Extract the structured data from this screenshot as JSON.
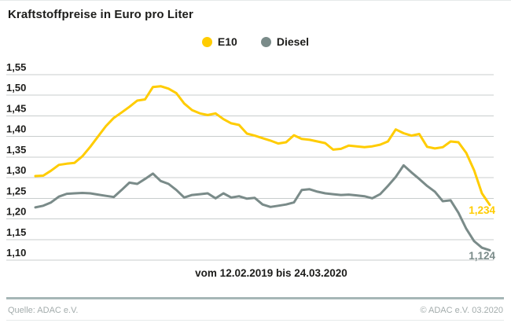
{
  "title": "Kraftstoffpreise in Euro pro Liter",
  "xlabel": "vom 12.02.2019 bis 24.03.2020",
  "footer": {
    "source": "Quelle: ADAC e.V.",
    "copyright": "© ADAC e.V.  03.2020"
  },
  "colors": {
    "e10": "#FFCC00",
    "diesel": "#7A8B89",
    "grid": "#c8cdcd",
    "text": "#1d1d1b",
    "footer_text": "#a3acac",
    "separator": "#a6b7b7"
  },
  "chart_data": {
    "type": "line",
    "title": "Kraftstoffpreise in Euro pro Liter",
    "xlabel": "vom 12.02.2019 bis 24.03.2020",
    "x_start": "12.02.2019",
    "x_end": "24.03.2020",
    "x_interval": "weekly",
    "ylabel": "Euro pro Liter",
    "ylim": [
      1.1,
      1.55
    ],
    "ytick_step": 0.05,
    "ytick_labels": [
      "1,55",
      "1,50",
      "1,45",
      "1,40",
      "1,35",
      "1,30",
      "1,25",
      "1,20",
      "1,15",
      "1,10"
    ],
    "grid": true,
    "legend_position": "top-center",
    "series": [
      {
        "name": "E10",
        "color": "#FFCC00",
        "end_label": "1,234",
        "last_value": 1.234,
        "values": [
          1.304,
          1.305,
          1.317,
          1.331,
          1.334,
          1.336,
          1.352,
          1.375,
          1.4,
          1.425,
          1.445,
          1.458,
          1.472,
          1.487,
          1.49,
          1.52,
          1.522,
          1.516,
          1.505,
          1.48,
          1.464,
          1.456,
          1.452,
          1.456,
          1.442,
          1.432,
          1.428,
          1.407,
          1.402,
          1.396,
          1.39,
          1.383,
          1.386,
          1.403,
          1.394,
          1.392,
          1.388,
          1.384,
          1.368,
          1.37,
          1.378,
          1.376,
          1.374,
          1.376,
          1.38,
          1.388,
          1.417,
          1.408,
          1.402,
          1.406,
          1.375,
          1.371,
          1.374,
          1.388,
          1.386,
          1.36,
          1.318,
          1.262,
          1.234
        ]
      },
      {
        "name": "Diesel",
        "color": "#7A8B89",
        "end_label": "1,124",
        "last_value": 1.124,
        "values": [
          1.228,
          1.232,
          1.24,
          1.254,
          1.261,
          1.262,
          1.263,
          1.262,
          1.259,
          1.256,
          1.253,
          1.27,
          1.288,
          1.285,
          1.297,
          1.31,
          1.292,
          1.285,
          1.27,
          1.252,
          1.258,
          1.26,
          1.262,
          1.25,
          1.262,
          1.252,
          1.255,
          1.249,
          1.251,
          1.235,
          1.229,
          1.232,
          1.235,
          1.24,
          1.27,
          1.272,
          1.266,
          1.262,
          1.26,
          1.258,
          1.259,
          1.257,
          1.255,
          1.25,
          1.26,
          1.28,
          1.302,
          1.33,
          1.313,
          1.297,
          1.28,
          1.266,
          1.243,
          1.245,
          1.215,
          1.176,
          1.146,
          1.13,
          1.124
        ]
      }
    ]
  }
}
